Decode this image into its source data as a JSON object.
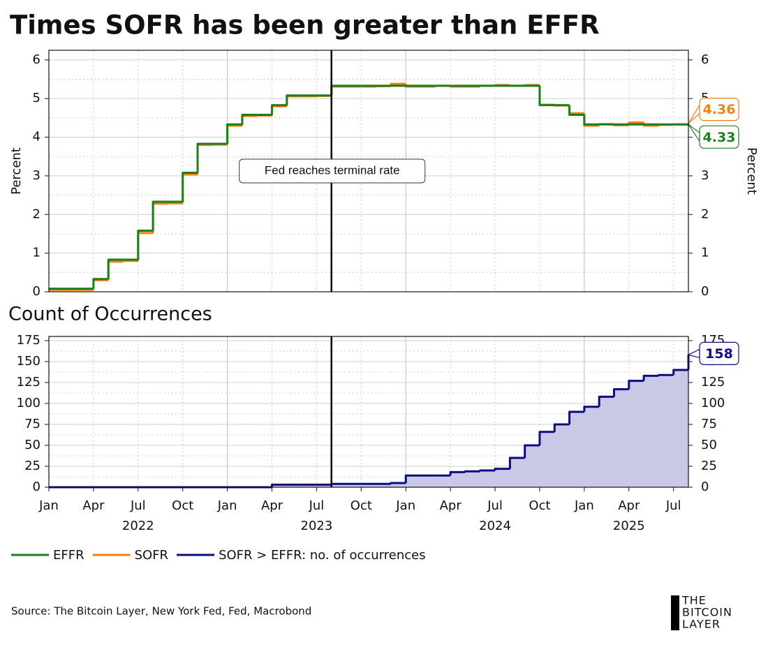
{
  "title": "Times SOFR has been greater than EFFR",
  "source": "Source: The Bitcoin Layer, New York Fed, Fed, Macrobond",
  "logo": [
    "THE",
    "BITCOIN",
    "LAYER"
  ],
  "chart_data": [
    {
      "type": "line",
      "step": true,
      "ylabel": "Percent",
      "y2label": "Percent",
      "x": [
        "2022-01",
        "2022-02",
        "2022-03",
        "2022-04",
        "2022-05",
        "2022-06",
        "2022-07",
        "2022-08",
        "2022-09",
        "2022-10",
        "2022-11",
        "2022-12",
        "2023-01",
        "2023-02",
        "2023-03",
        "2023-04",
        "2023-05",
        "2023-06",
        "2023-07",
        "2023-08",
        "2023-09",
        "2023-10",
        "2023-11",
        "2023-12",
        "2024-01",
        "2024-02",
        "2024-03",
        "2024-04",
        "2024-05",
        "2024-06",
        "2024-07",
        "2024-08",
        "2024-09",
        "2024-10",
        "2024-11",
        "2024-12",
        "2025-01",
        "2025-02",
        "2025-03",
        "2025-04",
        "2025-05",
        "2025-06",
        "2025-07",
        "2025-08"
      ],
      "xlim": [
        "2022-01",
        "2025-08"
      ],
      "series": [
        {
          "name": "EFFR",
          "color": "#1e7d1e",
          "values": [
            0.08,
            0.08,
            0.08,
            0.33,
            0.83,
            0.83,
            1.58,
            2.33,
            2.33,
            3.08,
            3.83,
            3.83,
            4.33,
            4.58,
            4.58,
            4.83,
            5.08,
            5.08,
            5.08,
            5.33,
            5.33,
            5.33,
            5.33,
            5.33,
            5.33,
            5.33,
            5.33,
            5.33,
            5.33,
            5.33,
            5.33,
            5.33,
            5.33,
            4.83,
            4.83,
            4.58,
            4.33,
            4.33,
            4.33,
            4.33,
            4.33,
            4.33,
            4.33,
            4.33
          ]
        },
        {
          "name": "SOFR",
          "color": "#f08012",
          "values": [
            0.05,
            0.05,
            0.05,
            0.3,
            0.78,
            0.8,
            1.52,
            2.28,
            2.29,
            3.04,
            3.8,
            3.81,
            4.3,
            4.55,
            4.56,
            4.8,
            5.06,
            5.06,
            5.07,
            5.31,
            5.31,
            5.31,
            5.32,
            5.38,
            5.31,
            5.31,
            5.33,
            5.31,
            5.31,
            5.33,
            5.35,
            5.33,
            5.35,
            4.84,
            4.82,
            4.62,
            4.3,
            4.34,
            4.31,
            4.38,
            4.3,
            4.32,
            4.33,
            4.36
          ]
        }
      ],
      "ylim": [
        0,
        6.25
      ],
      "yticks": [
        0,
        1,
        2,
        3,
        4,
        5,
        6
      ],
      "minor_yticks": [
        0.5,
        1.5,
        2.5,
        3.5,
        4.5,
        5.5
      ],
      "y2lim": [
        0,
        6.25
      ],
      "y2ticks": [
        0,
        1,
        2,
        3,
        4,
        5,
        6
      ],
      "grid": true,
      "annotation": {
        "text": "Fed reaches terminal rate",
        "x": "2023-08"
      }
    },
    {
      "type": "line",
      "step": true,
      "area": true,
      "title": "Count of Occurrences",
      "x": [
        "2022-01",
        "2022-02",
        "2022-03",
        "2022-04",
        "2022-05",
        "2022-06",
        "2022-07",
        "2022-08",
        "2022-09",
        "2022-10",
        "2022-11",
        "2022-12",
        "2023-01",
        "2023-02",
        "2023-03",
        "2023-04",
        "2023-05",
        "2023-06",
        "2023-07",
        "2023-08",
        "2023-09",
        "2023-10",
        "2023-11",
        "2023-12",
        "2024-01",
        "2024-02",
        "2024-03",
        "2024-04",
        "2024-05",
        "2024-06",
        "2024-07",
        "2024-08",
        "2024-09",
        "2024-10",
        "2024-11",
        "2024-12",
        "2025-01",
        "2025-02",
        "2025-03",
        "2025-04",
        "2025-05",
        "2025-06",
        "2025-07",
        "2025-08"
      ],
      "xlim": [
        "2022-01",
        "2025-08"
      ],
      "xticks": [
        {
          "value": "2022-01",
          "label": "Jan"
        },
        {
          "value": "2022-04",
          "label": "Apr"
        },
        {
          "value": "2022-07",
          "label": "Jul"
        },
        {
          "value": "2022-10",
          "label": "Oct"
        },
        {
          "value": "2023-01",
          "label": "Jan"
        },
        {
          "value": "2023-04",
          "label": "Apr"
        },
        {
          "value": "2023-07",
          "label": "Jul"
        },
        {
          "value": "2023-10",
          "label": "Oct"
        },
        {
          "value": "2024-01",
          "label": "Jan"
        },
        {
          "value": "2024-04",
          "label": "Apr"
        },
        {
          "value": "2024-07",
          "label": "Jul"
        },
        {
          "value": "2024-10",
          "label": "Oct"
        },
        {
          "value": "2025-01",
          "label": "Jan"
        },
        {
          "value": "2025-04",
          "label": "Apr"
        },
        {
          "value": "2025-07",
          "label": "Jul"
        }
      ],
      "year_labels": [
        {
          "value": "2022-07",
          "label": "2022"
        },
        {
          "value": "2023-07",
          "label": "2023"
        },
        {
          "value": "2024-07",
          "label": "2024"
        },
        {
          "value": "2025-04",
          "label": "2025"
        }
      ],
      "series": [
        {
          "name": "SOFR > EFFR: no. of occurrences",
          "color": "#0c0c80",
          "fill": "#c9c9e7",
          "values": [
            0,
            0,
            0,
            0,
            0,
            0,
            0,
            0,
            0,
            0,
            0,
            0,
            0,
            0,
            0,
            3,
            3,
            3,
            3,
            4,
            4,
            4,
            4,
            5,
            14,
            14,
            14,
            18,
            19,
            20,
            22,
            35,
            50,
            66,
            75,
            90,
            96,
            108,
            117,
            127,
            133,
            134,
            140,
            158
          ]
        }
      ],
      "ylim": [
        0,
        180
      ],
      "yticks": [
        0,
        25,
        50,
        75,
        100,
        125,
        150,
        175
      ],
      "minor_yticks": [
        12.5,
        37.5,
        62.5,
        87.5,
        112.5,
        137.5,
        162.5
      ],
      "y2lim": [
        0,
        180
      ],
      "y2ticks": [
        0,
        25,
        50,
        75,
        100,
        125,
        150,
        175
      ],
      "grid": true,
      "vline": "2023-08"
    }
  ]
}
